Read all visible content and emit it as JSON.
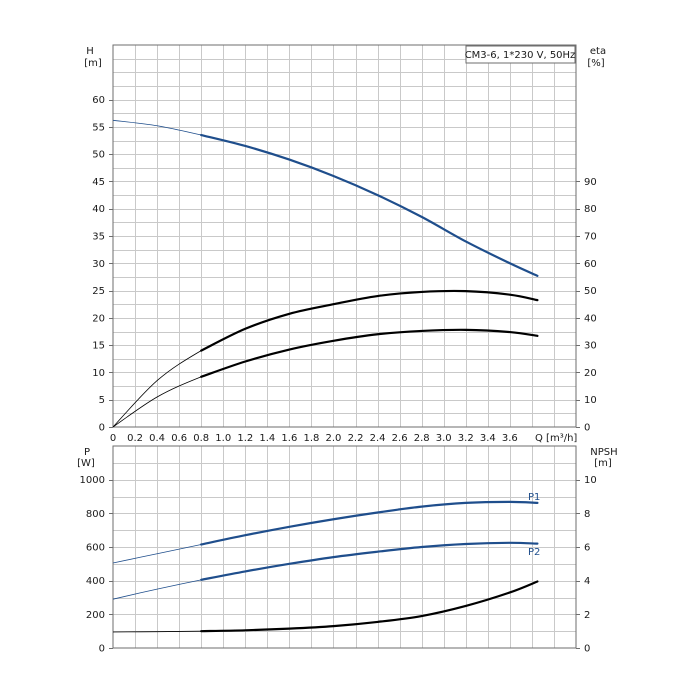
{
  "chart_data": [
    {
      "type": "line",
      "title": "CM3-6, 1*230 V, 50Hz",
      "xlabel": "Q [m³/h]",
      "ylabel_left": [
        "H",
        "[m]"
      ],
      "ylabel_right": [
        "eta",
        "[%]"
      ],
      "xlim": [
        0,
        4.2
      ],
      "ylim_left": [
        0,
        70
      ],
      "ylim_right": [
        0,
        140
      ],
      "x_ticks": [
        "0",
        "0.2",
        "0.4",
        "0.6",
        "0.8",
        "1.0",
        "1.2",
        "1.4",
        "1.6",
        "1.8",
        "2.0",
        "2.2",
        "2.4",
        "2.6",
        "2.8",
        "3.0",
        "3.2",
        "3.4",
        "3.6"
      ],
      "y_left_ticks": [
        "0",
        "5",
        "10",
        "15",
        "20",
        "25",
        "30",
        "35",
        "40",
        "45",
        "50",
        "55",
        "60"
      ],
      "y_right_ticks": [
        "0",
        "10",
        "20",
        "30",
        "40",
        "50",
        "60",
        "70",
        "80",
        "90"
      ],
      "grid": true,
      "series": [
        {
          "axis": "left",
          "color": "#1f4e8c",
          "x": [
            0,
            0.4,
            0.8,
            1.2,
            1.6,
            2.0,
            2.4,
            2.8,
            3.2,
            3.6,
            3.85
          ],
          "y": [
            56.2,
            55.2,
            53.5,
            51.5,
            49.0,
            46.0,
            42.5,
            38.5,
            34.0,
            30.0,
            27.7
          ],
          "operating_from": 0.8
        },
        {
          "axis": "right",
          "color": "#000000",
          "x": [
            0,
            0.4,
            0.8,
            1.2,
            1.6,
            2.0,
            2.4,
            2.8,
            3.2,
            3.6,
            3.85
          ],
          "y": [
            0,
            17,
            28,
            36,
            41.5,
            45,
            48,
            49.5,
            49.8,
            48.5,
            46.5
          ],
          "operating_from": 0.8
        },
        {
          "axis": "left",
          "color": "#000000",
          "x": [
            0,
            0.4,
            0.8,
            1.2,
            1.6,
            2.0,
            2.4,
            2.8,
            3.2,
            3.6,
            3.85
          ],
          "y": [
            0,
            5.5,
            9.2,
            12.0,
            14.2,
            15.8,
            17.0,
            17.6,
            17.8,
            17.4,
            16.7
          ],
          "operating_from": 0.8
        }
      ]
    },
    {
      "type": "line",
      "xlim": [
        0,
        4.2
      ],
      "ylabel_left": [
        "P",
        "[W]"
      ],
      "ylabel_right": [
        "NPSH",
        "[m]"
      ],
      "ylim_left": [
        0,
        1200
      ],
      "ylim_right": [
        0,
        12
      ],
      "y_left_ticks": [
        "0",
        "200",
        "400",
        "600",
        "800",
        "1000"
      ],
      "y_right_ticks": [
        "0",
        "2",
        "4",
        "6",
        "8",
        "10"
      ],
      "grid": true,
      "series": [
        {
          "name": "P1",
          "axis": "left",
          "color": "#1f4e8c",
          "x": [
            0,
            0.4,
            0.8,
            1.2,
            1.6,
            2.0,
            2.4,
            2.8,
            3.2,
            3.6,
            3.85
          ],
          "y": [
            505,
            560,
            615,
            670,
            720,
            765,
            805,
            840,
            862,
            868,
            862
          ],
          "operating_from": 0.8
        },
        {
          "name": "P2",
          "axis": "left",
          "color": "#1f4e8c",
          "x": [
            0,
            0.4,
            0.8,
            1.2,
            1.6,
            2.0,
            2.4,
            2.8,
            3.2,
            3.6,
            3.85
          ],
          "y": [
            290,
            350,
            405,
            455,
            500,
            540,
            572,
            600,
            618,
            625,
            620
          ],
          "operating_from": 0.8
        },
        {
          "axis": "right",
          "color": "#000000",
          "x": [
            0,
            0.4,
            0.8,
            1.2,
            1.6,
            2.0,
            2.4,
            2.8,
            3.2,
            3.6,
            3.85
          ],
          "y": [
            0.95,
            0.97,
            1.0,
            1.05,
            1.15,
            1.3,
            1.55,
            1.9,
            2.5,
            3.3,
            3.95
          ],
          "operating_from": 0.8
        }
      ]
    }
  ]
}
